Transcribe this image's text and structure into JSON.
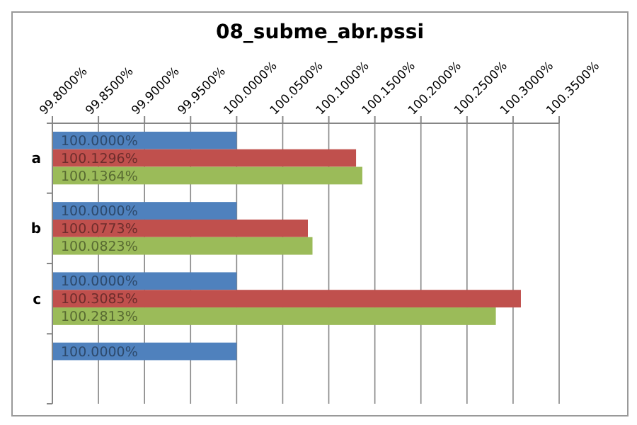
{
  "chart_data": {
    "type": "bar",
    "orientation": "horizontal",
    "title": "08_subme_abr.pssi",
    "categories": [
      "a",
      "b",
      "c",
      null
    ],
    "series": [
      {
        "color": "#4f81bd",
        "values": [
          100.0,
          100.0,
          100.0,
          100.0
        ],
        "value_labels": [
          "100.0000%",
          "100.0000%",
          "100.0000%",
          "100.0000%"
        ]
      },
      {
        "color": "#c0504d",
        "values": [
          100.1296,
          100.0773,
          100.3085,
          null
        ],
        "value_labels": [
          "100.1296%",
          "100.0773%",
          "100.3085%",
          null
        ]
      },
      {
        "color": "#9bbb59",
        "values": [
          100.1364,
          100.0823,
          100.2813,
          null
        ],
        "value_labels": [
          "100.1364%",
          "100.0823%",
          "100.2813%",
          null
        ]
      }
    ],
    "xlim": [
      99.8,
      100.35
    ],
    "xticks": [
      {
        "value": 99.8,
        "label": "99.8000%"
      },
      {
        "value": 99.85,
        "label": "99.8500%"
      },
      {
        "value": 99.9,
        "label": "99.9000%"
      },
      {
        "value": 99.95,
        "label": "99.9500%"
      },
      {
        "value": 100.0,
        "label": "100.0000%"
      },
      {
        "value": 100.05,
        "label": "100.0500%"
      },
      {
        "value": 100.1,
        "label": "100.1000%"
      },
      {
        "value": 100.15,
        "label": "100.1500%"
      },
      {
        "value": 100.2,
        "label": "100.2000%"
      },
      {
        "value": 100.25,
        "label": "100.2500%"
      },
      {
        "value": 100.3,
        "label": "100.3000%"
      },
      {
        "value": 100.35,
        "label": "100.3500%"
      }
    ],
    "grid": "x"
  }
}
